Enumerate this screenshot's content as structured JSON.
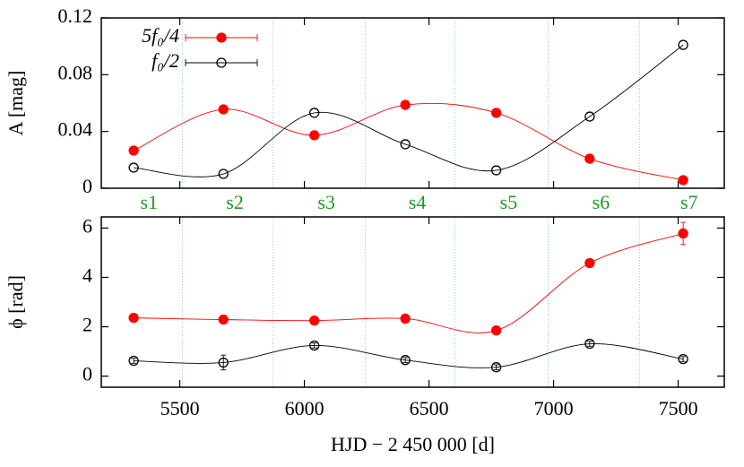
{
  "chart_data": [
    {
      "type": "line",
      "ylabel": "A [mag]",
      "xlim": [
        5185,
        7685
      ],
      "xticks": [
        5500,
        6000,
        6500,
        7000,
        7500
      ],
      "ylim": [
        0,
        0.12
      ],
      "yticks": [
        0,
        0.04,
        0.08,
        0.12
      ],
      "segments": [
        "s1",
        "s2",
        "s3",
        "s4",
        "s5",
        "s6",
        "s7"
      ],
      "segment_boundaries": [
        5511,
        5874,
        6245,
        6604,
        6978,
        7345
      ],
      "legend": "upper left",
      "series": [
        {
          "name": "5f₀/4",
          "color": "#ff0000",
          "marker": "filled",
          "x": [
            5315,
            5675,
            6040,
            6405,
            6770,
            7145,
            7520
          ],
          "values": [
            0.0265,
            0.0556,
            0.0373,
            0.0587,
            0.0531,
            0.0208,
            0.0057
          ]
        },
        {
          "name": "f₀/2",
          "color": "#000000",
          "marker": "open",
          "x": [
            5315,
            5675,
            6040,
            6405,
            6770,
            7145,
            7520
          ],
          "values": [
            0.0145,
            0.0101,
            0.0531,
            0.031,
            0.0126,
            0.0505,
            0.101
          ]
        }
      ]
    },
    {
      "type": "line",
      "ylabel": "ϕ [rad]",
      "xlabel": "HJD − 2 450 000 [d]",
      "xlim": [
        5185,
        7685
      ],
      "xticks": [
        5500,
        6000,
        6500,
        7000,
        7500
      ],
      "ylim": [
        -0.45,
        6.45
      ],
      "yticks": [
        0,
        2,
        4,
        6
      ],
      "segment_boundaries": [
        5511,
        5874,
        6245,
        6604,
        6978,
        7345
      ],
      "series": [
        {
          "name": "5f₀/4",
          "color": "#ff0000",
          "marker": "filled",
          "x": [
            5315,
            5675,
            6040,
            6405,
            6770,
            7145,
            7520
          ],
          "values": [
            2.36,
            2.29,
            2.25,
            2.33,
            1.85,
            4.58,
            5.78
          ],
          "errors": [
            0.05,
            0.05,
            0.05,
            0.05,
            0.05,
            0.1,
            0.45
          ]
        },
        {
          "name": "f₀/2",
          "color": "#000000",
          "marker": "open",
          "x": [
            5315,
            5675,
            6040,
            6405,
            6770,
            7145,
            7520
          ],
          "values": [
            0.62,
            0.55,
            1.24,
            0.65,
            0.36,
            1.31,
            0.69
          ],
          "errors": [
            0.1,
            0.3,
            0.1,
            0.1,
            0.1,
            0.1,
            0.1
          ]
        }
      ]
    }
  ]
}
